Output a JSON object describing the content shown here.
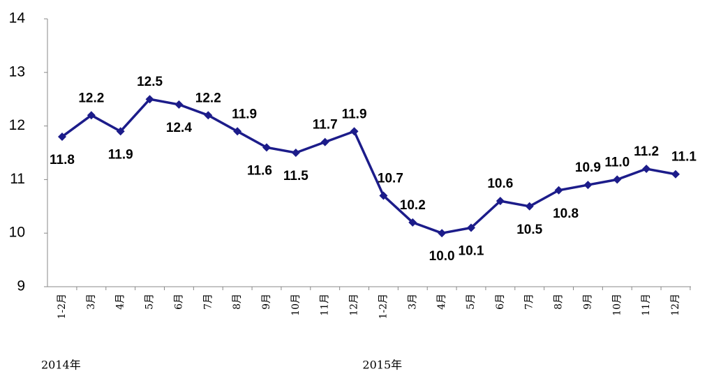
{
  "chart_data": {
    "type": "line",
    "categories": [
      "1-2月",
      "3月",
      "4月",
      "5月",
      "6月",
      "7月",
      "8月",
      "9月",
      "10月",
      "11月",
      "12月",
      "1-2月",
      "3月",
      "4月",
      "5月",
      "6月",
      "7月",
      "8月",
      "9月",
      "10月",
      "11月",
      "12月"
    ],
    "values": [
      11.8,
      12.2,
      11.9,
      12.5,
      12.4,
      12.2,
      11.9,
      11.6,
      11.5,
      11.7,
      11.9,
      10.7,
      10.2,
      10.0,
      10.1,
      10.6,
      10.5,
      10.8,
      10.9,
      11.0,
      11.2,
      11.1
    ],
    "value_labels": [
      "11.8",
      "12.2",
      "11.9",
      "12.5",
      "12.4",
      "12.2",
      "11.9",
      "11.6",
      "11.5",
      "11.7",
      "11.9",
      "10.7",
      "10.2",
      "10.0",
      "10.1",
      "10.6",
      "10.5",
      "10.8",
      "10.9",
      "11.0",
      "11.2",
      "11.1"
    ],
    "x_groups": [
      {
        "label": "2014年",
        "start": 0
      },
      {
        "label": "2015年",
        "start": 11
      }
    ],
    "color": "#1c1c8a",
    "ylim": [
      9,
      14
    ],
    "yticks": [
      9,
      10,
      11,
      12,
      13,
      14
    ],
    "grid": false
  }
}
